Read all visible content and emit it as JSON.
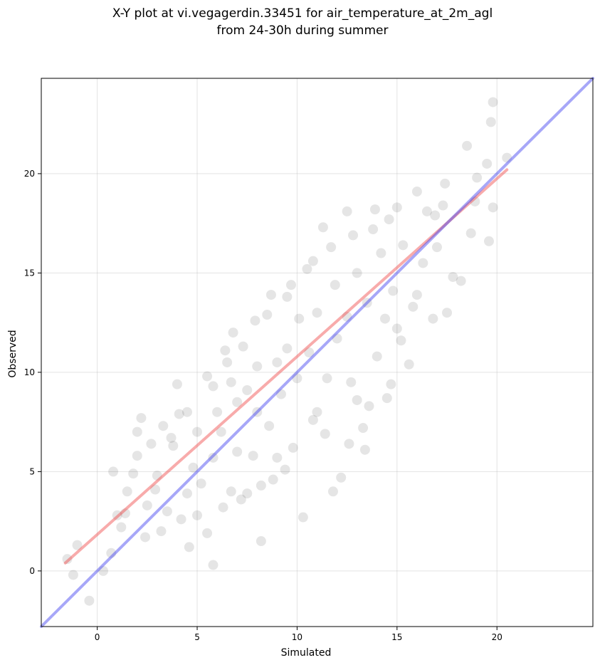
{
  "chart_data": {
    "type": "scatter",
    "title_lines": [
      "X-Y plot at vi.vegagerdin.33451 for air_temperature_at_2m_agl",
      "from 24-30h during summer"
    ],
    "xlabel": "Simulated",
    "ylabel": "Observed",
    "xlim": [
      -2.8,
      24.8
    ],
    "ylim": [
      -2.8,
      24.8
    ],
    "xticks": [
      0,
      5,
      10,
      15,
      20
    ],
    "yticks": [
      0,
      5,
      10,
      15,
      20
    ],
    "grid": true,
    "point_color": "#000000",
    "point_alpha": 0.1,
    "series": [
      {
        "type": "scatter",
        "points": [
          [
            -1.5,
            0.6
          ],
          [
            -1.2,
            -0.2
          ],
          [
            -1.0,
            1.3
          ],
          [
            -0.4,
            -1.5
          ],
          [
            0.3,
            0.0
          ],
          [
            0.8,
            5.0
          ],
          [
            0.7,
            0.9
          ],
          [
            1.2,
            2.2
          ],
          [
            1.4,
            2.9
          ],
          [
            1.5,
            4.0
          ],
          [
            1.8,
            4.9
          ],
          [
            2.0,
            7.0
          ],
          [
            2.2,
            7.7
          ],
          [
            2.0,
            5.8
          ],
          [
            2.5,
            3.3
          ],
          [
            2.7,
            6.4
          ],
          [
            3.0,
            4.8
          ],
          [
            3.3,
            7.3
          ],
          [
            3.5,
            3.0
          ],
          [
            3.8,
            6.3
          ],
          [
            4.0,
            9.4
          ],
          [
            4.1,
            7.9
          ],
          [
            4.2,
            2.6
          ],
          [
            4.5,
            3.9
          ],
          [
            4.6,
            1.2
          ],
          [
            4.8,
            5.2
          ],
          [
            5.0,
            7.0
          ],
          [
            5.2,
            4.4
          ],
          [
            5.5,
            9.8
          ],
          [
            5.5,
            1.9
          ],
          [
            5.8,
            0.3
          ],
          [
            5.8,
            5.7
          ],
          [
            6.0,
            8.0
          ],
          [
            6.2,
            7.0
          ],
          [
            6.5,
            10.5
          ],
          [
            6.7,
            9.5
          ],
          [
            6.8,
            12.0
          ],
          [
            7.0,
            6.0
          ],
          [
            7.0,
            8.5
          ],
          [
            7.3,
            11.3
          ],
          [
            7.5,
            3.9
          ],
          [
            7.5,
            9.1
          ],
          [
            7.8,
            5.8
          ],
          [
            8.0,
            10.3
          ],
          [
            8.0,
            8.0
          ],
          [
            8.2,
            4.3
          ],
          [
            8.2,
            1.5
          ],
          [
            8.5,
            12.9
          ],
          [
            8.6,
            7.3
          ],
          [
            9.0,
            10.5
          ],
          [
            9.0,
            5.7
          ],
          [
            9.2,
            8.9
          ],
          [
            9.5,
            13.8
          ],
          [
            9.5,
            11.2
          ],
          [
            9.8,
            6.2
          ],
          [
            10.0,
            9.7
          ],
          [
            10.1,
            12.7
          ],
          [
            10.3,
            2.7
          ],
          [
            10.5,
            15.2
          ],
          [
            10.6,
            11.0
          ],
          [
            11.0,
            13.0
          ],
          [
            11.0,
            8.0
          ],
          [
            11.3,
            17.3
          ],
          [
            11.5,
            9.7
          ],
          [
            11.8,
            4.0
          ],
          [
            11.9,
            14.4
          ],
          [
            12.0,
            11.7
          ],
          [
            12.2,
            4.7
          ],
          [
            12.5,
            18.1
          ],
          [
            12.5,
            12.8
          ],
          [
            12.7,
            9.5
          ],
          [
            13.0,
            15.0
          ],
          [
            13.0,
            8.6
          ],
          [
            13.3,
            7.2
          ],
          [
            13.4,
            6.1
          ],
          [
            13.5,
            13.5
          ],
          [
            13.8,
            17.2
          ],
          [
            14.0,
            10.8
          ],
          [
            14.2,
            16.0
          ],
          [
            14.4,
            12.7
          ],
          [
            14.5,
            8.7
          ],
          [
            14.8,
            14.1
          ],
          [
            15.0,
            18.3
          ],
          [
            15.0,
            12.2
          ],
          [
            15.3,
            16.4
          ],
          [
            15.6,
            10.4
          ],
          [
            15.8,
            13.3
          ],
          [
            16.0,
            19.1
          ],
          [
            16.3,
            15.5
          ],
          [
            16.5,
            18.1
          ],
          [
            16.8,
            12.7
          ],
          [
            17.0,
            16.3
          ],
          [
            17.4,
            19.5
          ],
          [
            17.5,
            13.0
          ],
          [
            17.8,
            14.8
          ],
          [
            18.2,
            14.6
          ],
          [
            18.5,
            21.4
          ],
          [
            18.7,
            17.0
          ],
          [
            19.0,
            19.8
          ],
          [
            19.5,
            20.5
          ],
          [
            19.6,
            16.6
          ],
          [
            19.7,
            22.6
          ],
          [
            19.8,
            23.6
          ],
          [
            19.8,
            18.3
          ],
          [
            20.5,
            20.8
          ],
          [
            3.2,
            2.0
          ],
          [
            2.4,
            1.7
          ],
          [
            1.0,
            2.8
          ],
          [
            2.9,
            4.1
          ],
          [
            6.3,
            3.2
          ],
          [
            5.0,
            2.8
          ],
          [
            6.7,
            4.0
          ],
          [
            7.2,
            3.6
          ],
          [
            9.4,
            5.1
          ],
          [
            12.6,
            6.4
          ],
          [
            13.6,
            8.3
          ],
          [
            14.7,
            9.4
          ],
          [
            10.8,
            7.6
          ],
          [
            11.4,
            6.9
          ],
          [
            8.8,
            4.6
          ],
          [
            15.2,
            11.6
          ],
          [
            16.0,
            13.9
          ],
          [
            17.3,
            18.4
          ],
          [
            18.9,
            18.6
          ],
          [
            4.5,
            8.0
          ],
          [
            3.7,
            6.7
          ],
          [
            5.8,
            9.3
          ],
          [
            6.4,
            11.1
          ],
          [
            7.9,
            12.6
          ],
          [
            8.7,
            13.9
          ],
          [
            9.7,
            14.4
          ],
          [
            10.8,
            15.6
          ],
          [
            11.7,
            16.3
          ],
          [
            12.8,
            16.9
          ],
          [
            13.9,
            18.2
          ],
          [
            14.6,
            17.7
          ],
          [
            16.9,
            17.9
          ]
        ]
      },
      {
        "type": "line",
        "name": "",
        "color": "#ef4444",
        "alpha": 0.45,
        "x": [
          -1.6,
          20.5
        ],
        "y": [
          0.4,
          20.2
        ]
      },
      {
        "type": "line",
        "name": "",
        "color": "#3b3bf0",
        "alpha": 0.45,
        "x": [
          -2.8,
          24.8
        ],
        "y": [
          -2.8,
          24.8
        ]
      }
    ]
  }
}
